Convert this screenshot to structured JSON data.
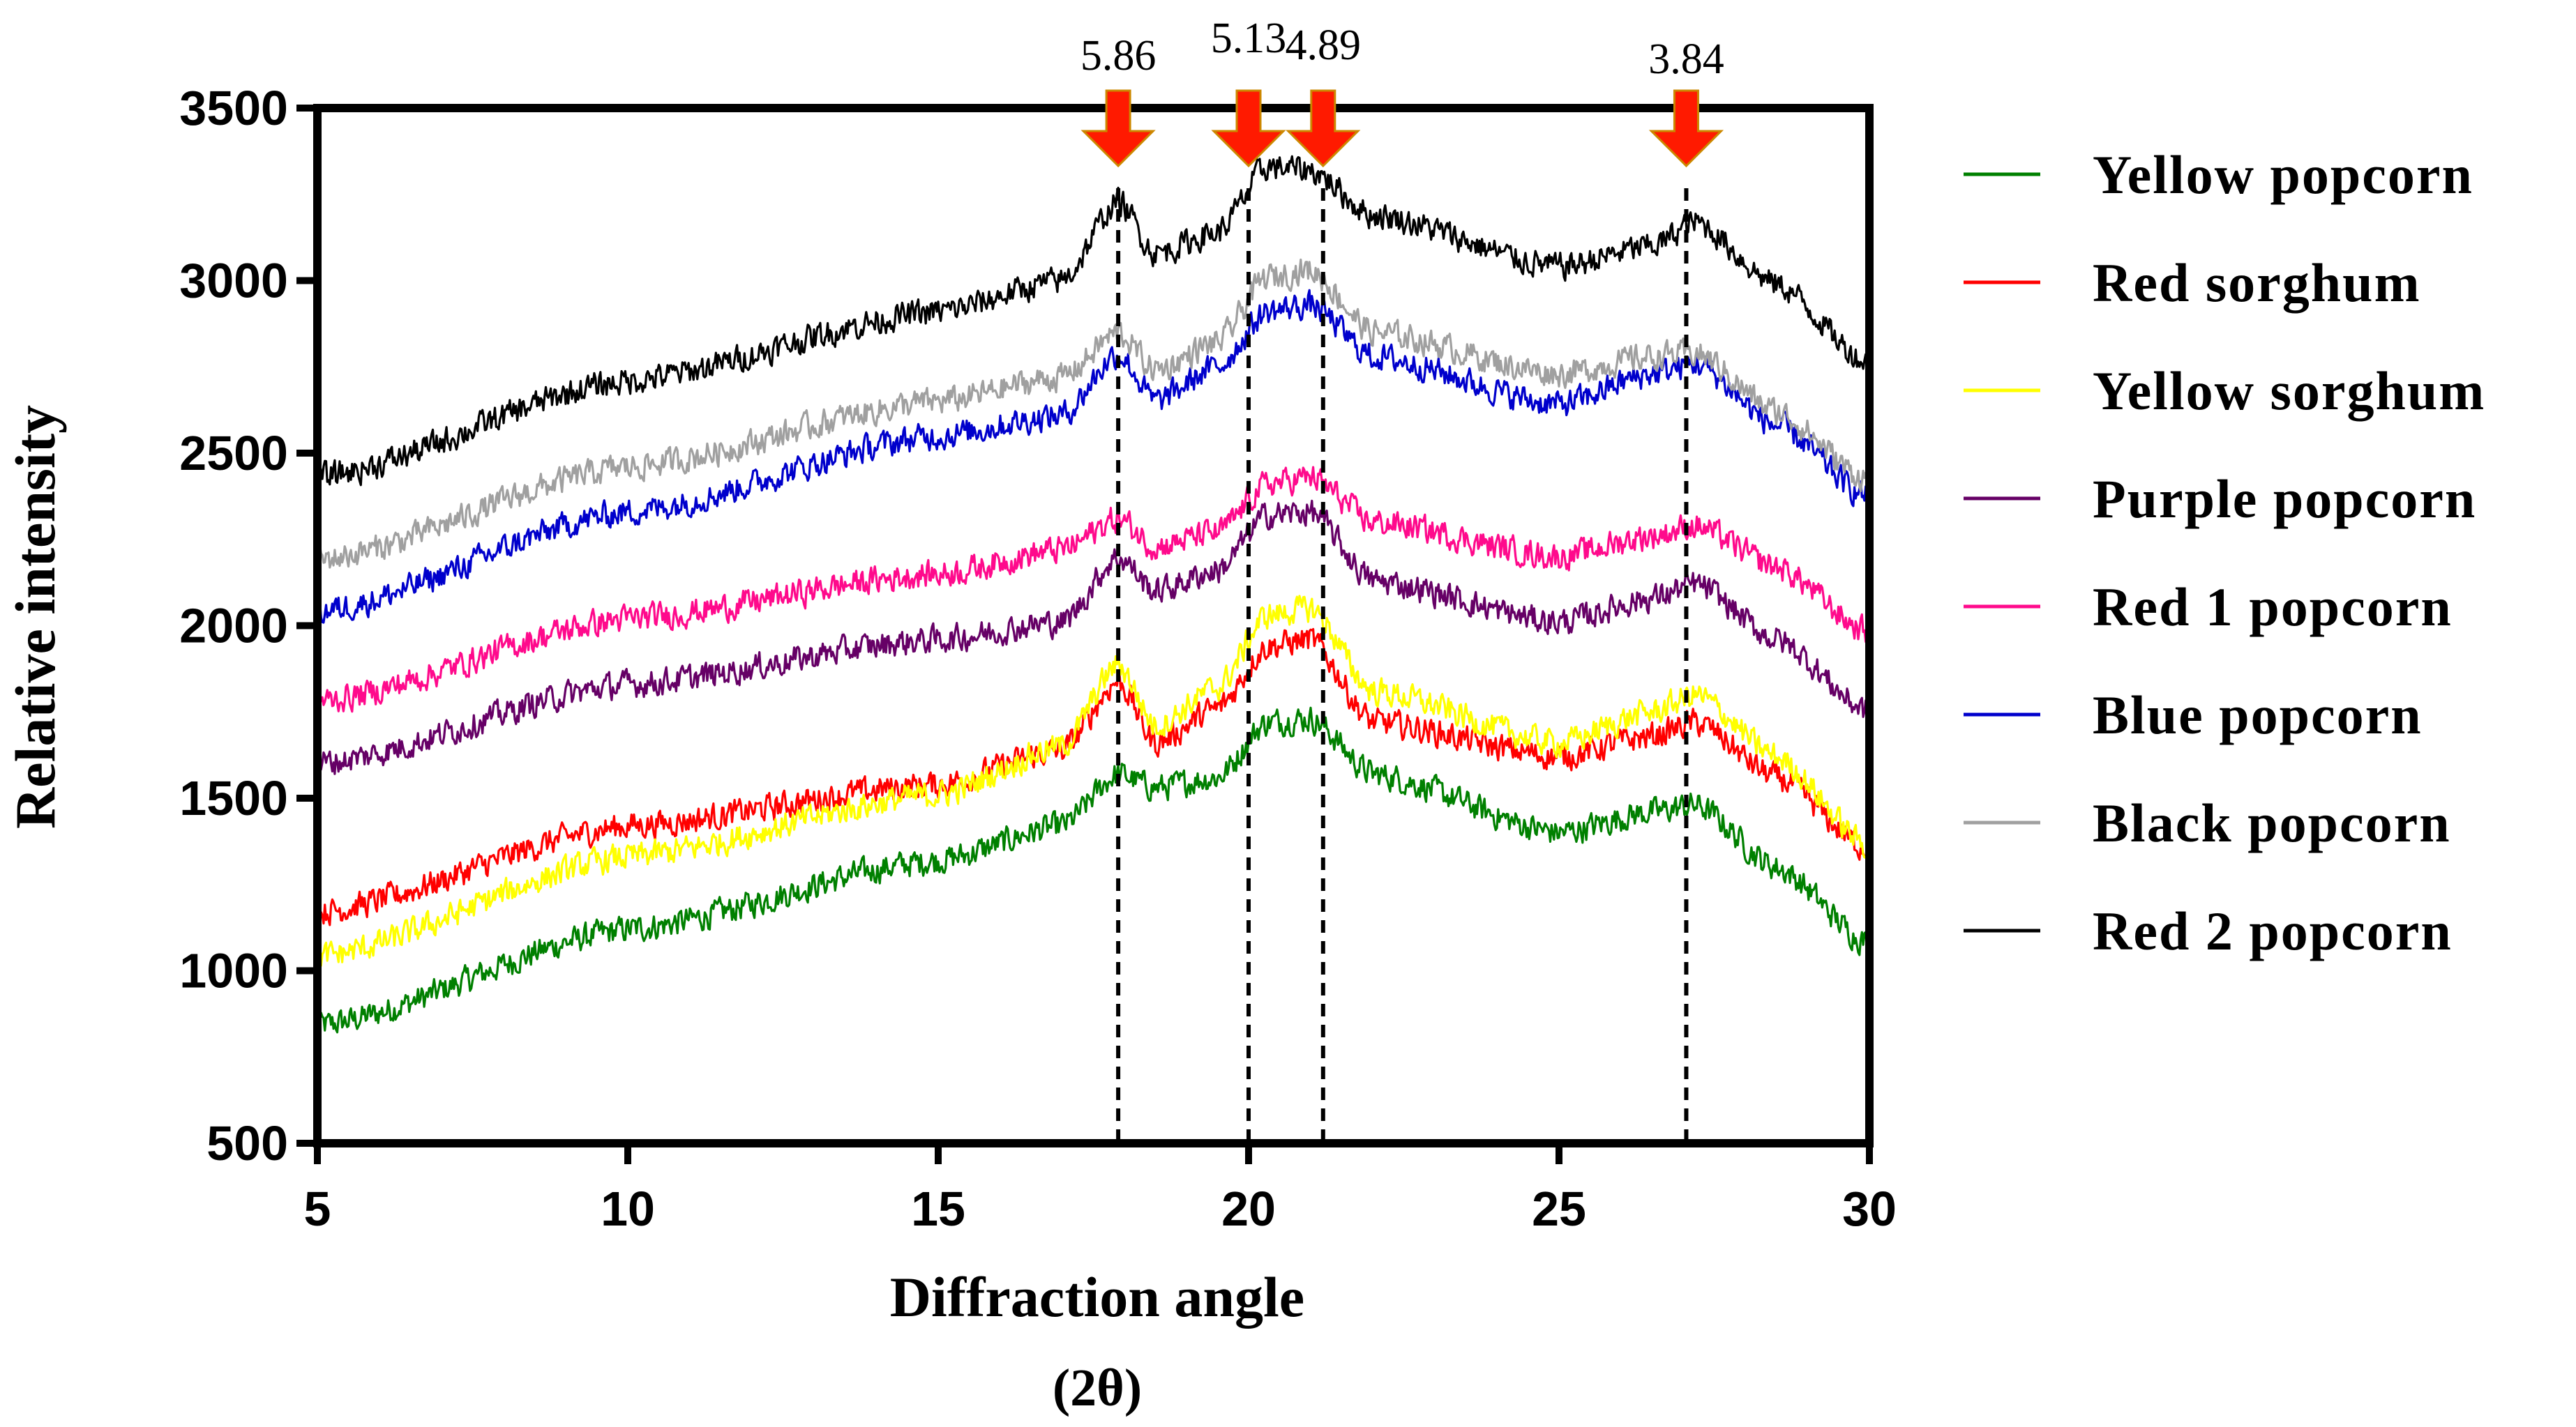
{
  "chart_data": {
    "type": "line",
    "title": "",
    "xlabel": "Diffraction angle",
    "xlabel_unit": "(2θ)",
    "ylabel": "Relative intensity",
    "xlim": [
      5,
      30
    ],
    "ylim": [
      500,
      3500
    ],
    "x_ticks": [
      5,
      10,
      15,
      20,
      25,
      30
    ],
    "x_tick_labels": [
      "5",
      "10",
      "15",
      "20",
      "25",
      "30"
    ],
    "y_ticks": [
      500,
      1000,
      1500,
      2000,
      2500,
      3000,
      3500
    ],
    "y_tick_labels": [
      "500",
      "1000",
      "1500",
      "2000",
      "2500",
      "3000",
      "3500"
    ],
    "legend_position": "right",
    "peak_annotations": [
      {
        "label": "5.86",
        "angle": 17.9
      },
      {
        "label": "5.13",
        "angle": 20.0
      },
      {
        "label": "4.89",
        "angle": 21.2
      },
      {
        "label": "3.84",
        "angle": 27.05
      }
    ],
    "x": [
      5,
      10,
      15,
      17,
      17.9,
      18.5,
      19.5,
      20.3,
      21.0,
      22.0,
      25.0,
      26.5,
      27.2,
      28.5,
      30
    ],
    "series": [
      {
        "name": "Yellow popcorn",
        "color": "#008000",
        "values": [
          840,
          1120,
          1320,
          1420,
          1570,
          1530,
          1560,
          1720,
          1730,
          1570,
          1400,
          1460,
          1480,
          1300,
          1080
        ]
      },
      {
        "name": "Red sorghum",
        "color": "#ff0000",
        "values": [
          1170,
          1420,
          1540,
          1640,
          1840,
          1660,
          1760,
          1940,
          1960,
          1720,
          1620,
          1680,
          1720,
          1560,
          1350
        ]
      },
      {
        "name": "Yellow sorghum",
        "color": "#ffff00",
        "values": [
          1040,
          1330,
          1510,
          1650,
          1890,
          1710,
          1820,
          2030,
          2050,
          1810,
          1660,
          1750,
          1800,
          1620,
          1360
        ]
      },
      {
        "name": "Purple popcorn",
        "color": "#660066",
        "values": [
          1600,
          1830,
          1960,
          2010,
          2200,
          2100,
          2160,
          2320,
          2330,
          2130,
          2010,
          2080,
          2120,
          1960,
          1750
        ]
      },
      {
        "name": "Red 1 popcorn",
        "color": "#ff0a8c",
        "values": [
          1780,
          2020,
          2150,
          2220,
          2310,
          2230,
          2270,
          2410,
          2430,
          2300,
          2200,
          2260,
          2290,
          2170,
          1980
        ]
      },
      {
        "name": "Blue popcorn",
        "color": "#0000cc",
        "values": [
          2040,
          2330,
          2550,
          2610,
          2790,
          2650,
          2750,
          2910,
          2930,
          2780,
          2640,
          2730,
          2760,
          2580,
          2370
        ]
      },
      {
        "name": "Black popcorn",
        "color": "#a0a0a0",
        "values": [
          2190,
          2460,
          2650,
          2720,
          2850,
          2740,
          2820,
          3010,
          3030,
          2850,
          2730,
          2780,
          2790,
          2620,
          2420
        ]
      },
      {
        "name": "Red 2 popcorn",
        "color": "#000000",
        "values": [
          2430,
          2710,
          2910,
          3000,
          3230,
          3080,
          3140,
          3330,
          3320,
          3190,
          3040,
          3100,
          3170,
          2990,
          2760
        ]
      }
    ]
  }
}
